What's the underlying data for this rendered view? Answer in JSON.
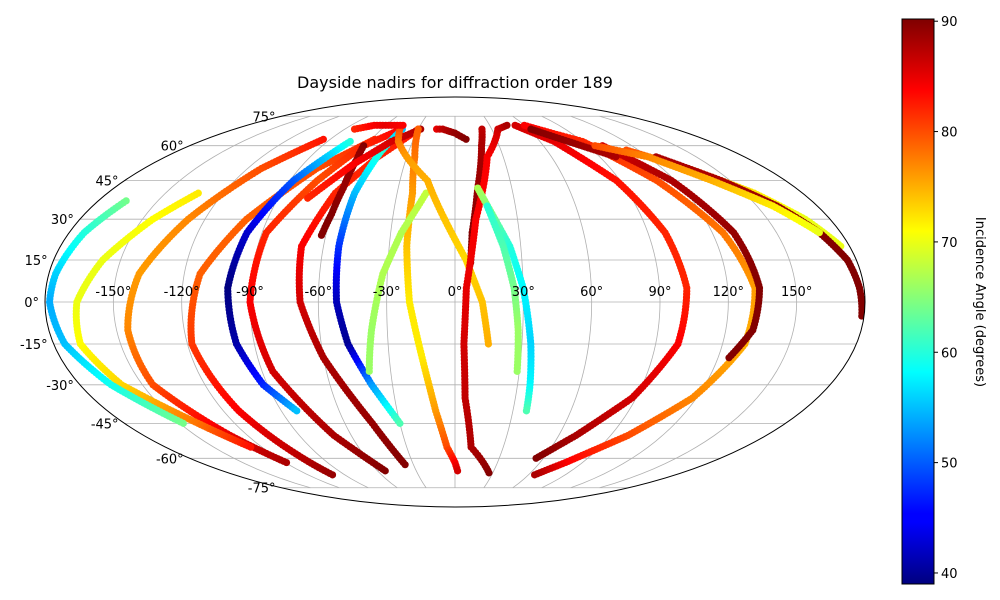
{
  "chart_data": {
    "type": "scatter",
    "projection": "mollweide",
    "title": "Dayside nadirs for diffraction order 189",
    "grid": true,
    "longitude_ticks": [
      {
        "value": -150,
        "label": "-150°"
      },
      {
        "value": -120,
        "label": "-120°"
      },
      {
        "value": -90,
        "label": "-90°"
      },
      {
        "value": -60,
        "label": "-60°"
      },
      {
        "value": -30,
        "label": "-30°"
      },
      {
        "value": 0,
        "label": "0°"
      },
      {
        "value": 30,
        "label": "30°"
      },
      {
        "value": 60,
        "label": "60°"
      },
      {
        "value": 90,
        "label": "90°"
      },
      {
        "value": 120,
        "label": "120°"
      },
      {
        "value": 150,
        "label": "150°"
      }
    ],
    "latitude_ticks": [
      {
        "value": 75,
        "label": "75°"
      },
      {
        "value": 60,
        "label": "60°"
      },
      {
        "value": 45,
        "label": "45°"
      },
      {
        "value": 30,
        "label": "30°"
      },
      {
        "value": 15,
        "label": "15°"
      },
      {
        "value": 0,
        "label": "0°"
      },
      {
        "value": -15,
        "label": "-15°"
      },
      {
        "value": -30,
        "label": "-30°"
      },
      {
        "value": -45,
        "label": "-45°"
      },
      {
        "value": -60,
        "label": "-60°"
      },
      {
        "value": -75,
        "label": "-75°"
      }
    ],
    "colorbar": {
      "label": "Incidence Angle (degrees)",
      "colormap": "jet",
      "range": [
        39,
        90.2
      ],
      "ticks": [
        {
          "value": 40,
          "label": "40"
        },
        {
          "value": 50,
          "label": "50"
        },
        {
          "value": 60,
          "label": "60"
        },
        {
          "value": 70,
          "label": "70"
        },
        {
          "value": 80,
          "label": "80"
        },
        {
          "value": 90,
          "label": "90"
        }
      ]
    },
    "tracks": [
      {
        "points": [
          [
            -58,
            63,
            82
          ],
          [
            -80,
            50,
            80
          ],
          [
            -100,
            30,
            79
          ],
          [
            -113,
            10,
            79
          ],
          [
            -118,
            -15,
            81
          ],
          [
            -112,
            -40,
            84
          ],
          [
            -104,
            -58,
            87
          ],
          [
            -100,
            -68,
            89
          ]
        ]
      },
      {
        "points": [
          [
            -95,
            63,
            83
          ],
          [
            -112,
            50,
            80
          ],
          [
            -128,
            30,
            77
          ],
          [
            -140,
            10,
            76
          ],
          [
            -145,
            -10,
            77
          ],
          [
            -145,
            -30,
            80
          ],
          [
            -130,
            -50,
            85
          ],
          [
            -119,
            -62,
            88
          ]
        ]
      },
      {
        "points": [
          [
            -133,
            40,
            72
          ],
          [
            -145,
            30,
            71
          ],
          [
            -158,
            15,
            70
          ],
          [
            -166,
            0,
            70
          ],
          [
            -168,
            -15,
            71
          ],
          [
            -160,
            -30,
            73
          ],
          [
            -140,
            -45,
            78
          ],
          [
            -127,
            -55,
            83
          ]
        ]
      },
      {
        "points": [
          [
            -166,
            37,
            64
          ],
          [
            -173,
            25,
            60
          ],
          [
            -177,
            10,
            56
          ],
          [
            -178,
            0,
            54
          ],
          [
            -175,
            -15,
            55
          ],
          [
            -165,
            -30,
            59
          ],
          [
            -148,
            -45,
            64
          ]
        ]
      },
      {
        "points": [
          [
            -74,
            62,
            60
          ],
          [
            -88,
            45,
            50
          ],
          [
            -97,
            25,
            43
          ],
          [
            -100,
            5,
            39
          ],
          [
            -98,
            -15,
            41
          ],
          [
            -92,
            -30,
            47
          ],
          [
            -82,
            -40,
            55
          ]
        ]
      },
      {
        "points": [
          [
            -44,
            68,
            84
          ],
          [
            -62,
            60,
            82
          ],
          [
            -75,
            45,
            80
          ],
          [
            -88,
            25,
            82
          ],
          [
            -90,
            0,
            84
          ],
          [
            -85,
            -25,
            86
          ],
          [
            -70,
            -50,
            88
          ],
          [
            -54,
            -66,
            90
          ]
        ]
      },
      {
        "points": [
          [
            -30,
            68,
            83
          ],
          [
            -48,
            55,
            82
          ],
          [
            -62,
            40,
            82
          ],
          [
            -70,
            20,
            84
          ],
          [
            -68,
            0,
            86
          ],
          [
            -60,
            -20,
            88
          ],
          [
            -45,
            -45,
            89
          ],
          [
            -36,
            -63,
            90
          ]
        ]
      },
      {
        "points": [
          [
            -62,
            60,
            90
          ],
          [
            -60,
            54,
            89
          ],
          [
            -59,
            42,
            89
          ],
          [
            -60,
            32,
            90
          ],
          [
            -62,
            24,
            90
          ]
        ]
      },
      {
        "points": [
          [
            -43,
            68,
            55
          ],
          [
            -48,
            57,
            60
          ],
          [
            -52,
            40,
            55
          ],
          [
            -53,
            20,
            48
          ],
          [
            -52,
            0,
            42
          ],
          [
            -48,
            -15,
            40
          ],
          [
            -40,
            -30,
            53
          ],
          [
            -30,
            -45,
            62
          ]
        ]
      },
      {
        "points": [
          [
            -28,
            68,
            88
          ],
          [
            -45,
            62,
            86
          ],
          [
            -60,
            52,
            84
          ],
          [
            -75,
            38,
            82
          ]
        ]
      },
      {
        "points": [
          [
            -15,
            68,
            85
          ],
          [
            -10,
            68,
            87
          ],
          [
            0,
            66,
            89
          ],
          [
            8,
            63,
            90
          ]
        ]
      },
      {
        "points": [
          [
            -30,
            68,
            79
          ],
          [
            -25,
            55,
            78
          ],
          [
            -22,
            40,
            76
          ],
          [
            -22,
            20,
            74
          ],
          [
            -20,
            0,
            72
          ],
          [
            -15,
            -20,
            72
          ],
          [
            -10,
            -40,
            76
          ],
          [
            -5,
            -55,
            80
          ],
          [
            0,
            -62,
            84
          ],
          [
            2,
            -66,
            86
          ]
        ]
      },
      {
        "points": [
          [
            -15,
            40,
            68
          ],
          [
            -25,
            25,
            67
          ],
          [
            -32,
            10,
            67
          ],
          [
            -37,
            -10,
            66
          ],
          [
            -40,
            -25,
            66
          ]
        ]
      },
      {
        "points": [
          [
            -45,
            68,
            80
          ],
          [
            -40,
            62,
            78
          ],
          [
            -30,
            55,
            76
          ],
          [
            -15,
            45,
            75
          ],
          [
            -5,
            30,
            74
          ],
          [
            5,
            15,
            73
          ],
          [
            12,
            0,
            74
          ],
          [
            15,
            -15,
            75
          ]
        ]
      },
      {
        "points": [
          [
            22,
            68,
            87
          ],
          [
            18,
            60,
            88
          ],
          [
            12,
            42,
            89
          ],
          [
            8,
            25,
            90
          ],
          [
            7,
            14,
            90
          ]
        ]
      },
      {
        "points": [
          [
            27,
            -67,
            90
          ],
          [
            10,
            -55,
            88
          ],
          [
            5,
            -35,
            87
          ],
          [
            4,
            -15,
            86
          ],
          [
            5,
            5,
            85
          ],
          [
            10,
            30,
            84
          ],
          [
            20,
            55,
            84
          ],
          [
            35,
            68,
            86
          ],
          [
            45,
            70,
            88
          ]
        ]
      },
      {
        "points": [
          [
            12,
            42,
            67
          ],
          [
            18,
            32,
            64
          ],
          [
            25,
            20,
            60
          ],
          [
            30,
            5,
            58
          ],
          [
            34,
            -15,
            56
          ],
          [
            36,
            -30,
            58
          ],
          [
            37,
            -40,
            62
          ]
        ]
      },
      {
        "points": [
          [
            16,
            35,
            60
          ],
          [
            22,
            20,
            62
          ],
          [
            26,
            5,
            64
          ],
          [
            28,
            -10,
            66
          ],
          [
            29,
            -25,
            66
          ]
        ]
      },
      {
        "points": [
          [
            52,
            70,
            86
          ],
          [
            70,
            62,
            85
          ],
          [
            88,
            45,
            83
          ],
          [
            98,
            25,
            82
          ],
          [
            102,
            5,
            82
          ],
          [
            100,
            -15,
            84
          ],
          [
            88,
            -35,
            86
          ],
          [
            70,
            -50,
            88
          ],
          [
            55,
            -60,
            90
          ]
        ]
      },
      {
        "points": [
          [
            60,
            70,
            84
          ],
          [
            90,
            62,
            82
          ],
          [
            110,
            45,
            80
          ],
          [
            125,
            25,
            78
          ],
          [
            132,
            5,
            76
          ],
          [
            130,
            -15,
            75
          ],
          [
            118,
            -35,
            77
          ],
          [
            100,
            -50,
            80
          ],
          [
            78,
            -62,
            84
          ],
          [
            65,
            -68,
            88
          ]
        ]
      },
      {
        "points": [
          [
            112,
            58,
            80
          ],
          [
            135,
            50,
            76
          ],
          [
            155,
            40,
            72
          ],
          [
            168,
            30,
            70
          ],
          [
            176,
            20,
            70
          ]
        ]
      },
      {
        "points": [
          [
            125,
            55,
            88
          ],
          [
            145,
            45,
            88
          ],
          [
            160,
            35,
            89
          ],
          [
            170,
            25,
            90
          ],
          [
            176,
            15,
            90
          ],
          [
            178,
            5,
            90
          ],
          [
            179,
            -5,
            90
          ]
        ]
      },
      {
        "points": [
          [
            100,
            60,
            86
          ],
          [
            118,
            45,
            88
          ],
          [
            130,
            25,
            89
          ],
          [
            134,
            5,
            90
          ],
          [
            132,
            -10,
            90
          ],
          [
            125,
            -20,
            90
          ]
        ]
      },
      {
        "points": [
          [
            62,
            68,
            90
          ],
          [
            80,
            62,
            89
          ],
          [
            100,
            55,
            88
          ]
        ]
      },
      {
        "points": [
          [
            95,
            60,
            80
          ],
          [
            120,
            55,
            77
          ],
          [
            140,
            45,
            75
          ],
          [
            158,
            35,
            72
          ],
          [
            170,
            25,
            70
          ]
        ]
      },
      {
        "points": [
          [
            -82,
            68,
            82
          ],
          [
            -70,
            70,
            84
          ],
          [
            -60,
            70,
            85
          ],
          [
            -45,
            70,
            84
          ]
        ]
      }
    ]
  }
}
